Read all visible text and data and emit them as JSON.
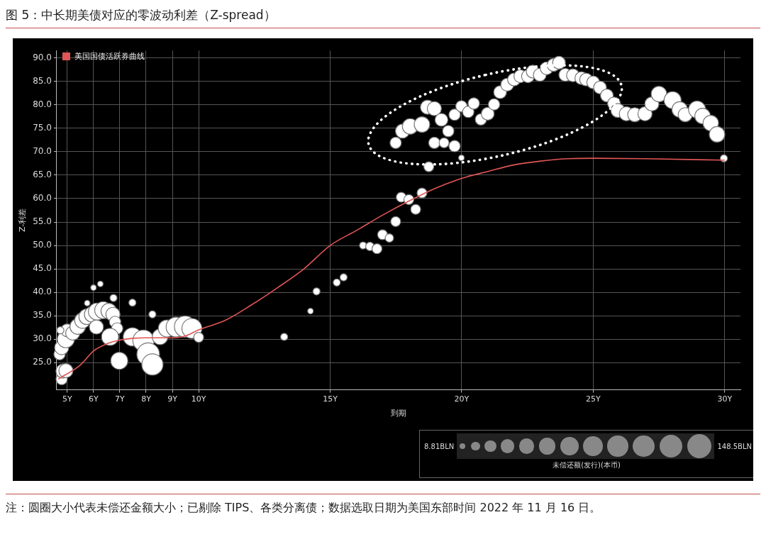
{
  "chart_data": {
    "type": "bubble",
    "title": "图 5：中长期美债对应的零波动利差（Z-spread）",
    "xlabel": "到期",
    "ylabel": "Z-利差",
    "legend_title": "未偿还额(发行)(本币)",
    "xlim": [
      4.6,
      30.6
    ],
    "ylim": [
      19.2,
      91.6
    ],
    "xticks": [
      {
        "value": 5,
        "label": "5Y"
      },
      {
        "value": 6,
        "label": "6Y"
      },
      {
        "value": 7,
        "label": "7Y"
      },
      {
        "value": 8,
        "label": "8Y"
      },
      {
        "value": 9,
        "label": "9Y"
      },
      {
        "value": 10,
        "label": "10Y"
      },
      {
        "value": 15,
        "label": "15Y"
      },
      {
        "value": 20,
        "label": "20Y"
      },
      {
        "value": 25,
        "label": "25Y"
      },
      {
        "value": 30,
        "label": "30Y"
      }
    ],
    "yticks": [
      {
        "value": 25,
        "label": "25.0"
      },
      {
        "value": 30,
        "label": "30.0"
      },
      {
        "value": 35,
        "label": "35.0"
      },
      {
        "value": 40,
        "label": "40.0"
      },
      {
        "value": 45,
        "label": "45.0"
      },
      {
        "value": 50,
        "label": "50.0"
      },
      {
        "value": 55,
        "label": "55.0"
      },
      {
        "value": 60,
        "label": "60.0"
      },
      {
        "value": 65,
        "label": "65.0"
      },
      {
        "value": 70,
        "label": "70.0"
      },
      {
        "value": 75,
        "label": "75.0"
      },
      {
        "value": 80,
        "label": "80.0"
      },
      {
        "value": 85,
        "label": "85.0"
      },
      {
        "value": 90,
        "label": "90.0"
      }
    ],
    "size_legend": [
      {
        "value": 8.81,
        "label": "8.81BLN"
      },
      {
        "value": 148.5,
        "label": "148.5BLN"
      }
    ],
    "grid": true,
    "legend": "top left",
    "series": [
      {
        "color": "#ffffff",
        "x": [
          4.79,
          4.84,
          4.95,
          4.71,
          4.79,
          4.95,
          5.0,
          4.74,
          5.21,
          5.4,
          5.58,
          5.74,
          5.95,
          6.13,
          6.11,
          6.37,
          6.58,
          6.74,
          6.82,
          6.9,
          6.76,
          5.76,
          6.0,
          6.26,
          6.63,
          6.98,
          7.48,
          7.9,
          8.08,
          8.24,
          7.48,
          8.24,
          8.53,
          8.79,
          9.14,
          9.48,
          9.74,
          10.0,
          13.25,
          14.25,
          14.48,
          15.25,
          15.51,
          16.25,
          16.51,
          16.78,
          16.99,
          17.25,
          17.49,
          17.7,
          17.99,
          18.25,
          18.49,
          17.49,
          17.75,
          18.04,
          18.49,
          18.7,
          18.96,
          19.23,
          19.49,
          18.96,
          19.33,
          19.73,
          19.99,
          18.75,
          19.73,
          19.99,
          20.25,
          20.46,
          20.73,
          20.99,
          21.23,
          21.46,
          21.73,
          21.99,
          22.23,
          22.52,
          22.7,
          22.97,
          23.23,
          23.49,
          23.7,
          23.94,
          24.23,
          24.55,
          24.73,
          25.0,
          25.26,
          25.52,
          25.79,
          25.94,
          26.26,
          26.58,
          26.97,
          27.23,
          27.5,
          28.02,
          28.29,
          28.5,
          28.95,
          29.16,
          29.47,
          29.71,
          29.97
        ],
        "values": [
          21.5,
          23.2,
          23.3,
          26.8,
          28.2,
          30.0,
          31.9,
          31.9,
          31.3,
          32.7,
          34.0,
          34.8,
          35.3,
          35.9,
          32.6,
          36.2,
          36.0,
          35.3,
          33.7,
          32.3,
          38.8,
          37.7,
          41.0,
          41.8,
          30.5,
          25.4,
          30.5,
          29.7,
          26.8,
          24.6,
          37.8,
          35.3,
          30.5,
          32.3,
          32.6,
          32.7,
          32.3,
          30.4,
          30.5,
          36.0,
          40.2,
          42.1,
          43.2,
          50.0,
          49.8,
          49.3,
          52.3,
          51.6,
          55.1,
          60.3,
          59.8,
          57.7,
          61.2,
          71.9,
          74.4,
          75.4,
          75.8,
          79.5,
          79.2,
          76.8,
          74.4,
          71.9,
          71.9,
          71.2,
          68.7,
          66.8,
          77.9,
          79.7,
          78.5,
          80.3,
          76.9,
          78.1,
          80.1,
          82.7,
          84.3,
          85.4,
          86.1,
          86.1,
          87.1,
          86.4,
          87.8,
          88.5,
          89.0,
          86.4,
          86.3,
          85.7,
          85.4,
          84.8,
          83.7,
          82.0,
          80.3,
          78.8,
          78.1,
          77.9,
          78.1,
          80.2,
          82.3,
          81.0,
          79.0,
          77.9,
          79.0,
          77.6,
          76.1,
          73.7,
          68.6
        ],
        "sizes": [
          33,
          51,
          51,
          33,
          51,
          74,
          42,
          13,
          51,
          62,
          62,
          62,
          62,
          74,
          51,
          74,
          62,
          51,
          33,
          33,
          13,
          8,
          8,
          8,
          74,
          74,
          86,
          115,
          131,
          115,
          13,
          13,
          62,
          74,
          101,
          115,
          101,
          25,
          13,
          8,
          13,
          13,
          13,
          13,
          18,
          25,
          25,
          18,
          25,
          25,
          25,
          25,
          25,
          33,
          51,
          62,
          62,
          51,
          51,
          42,
          33,
          33,
          25,
          33,
          8,
          25,
          33,
          33,
          33,
          33,
          33,
          42,
          33,
          42,
          42,
          42,
          42,
          42,
          42,
          42,
          42,
          42,
          42,
          42,
          42,
          42,
          42,
          42,
          42,
          42,
          42,
          51,
          51,
          51,
          51,
          51,
          62,
          74,
          62,
          51,
          74,
          62,
          62,
          62,
          13
        ]
      },
      {
        "type": "line",
        "name": "美国国债活跃券曲线",
        "color": "#e05555",
        "x": [
          4.66,
          5.5,
          6,
          6.5,
          7,
          7.5,
          8,
          9,
          9.5,
          10,
          11,
          12,
          13,
          14,
          15,
          16,
          17,
          18,
          19,
          20,
          21,
          22,
          23,
          24,
          25,
          27,
          30
        ],
        "values": [
          21.5,
          24.5,
          27.5,
          29,
          29.8,
          30.2,
          30.3,
          30.3,
          30.7,
          32.0,
          34,
          37.3,
          41,
          45,
          50,
          53.2,
          56.5,
          59.5,
          62.2,
          64.3,
          65.8,
          67.2,
          68,
          68.5,
          68.6,
          68.5,
          68.2
        ]
      }
    ],
    "annotations": [
      "注：圆圈大小代表未偿还金额大小；已剔除 TIPS、各类分离债；数据选取日期为美国东部时间 2022 年 11 月 16 日。"
    ]
  }
}
